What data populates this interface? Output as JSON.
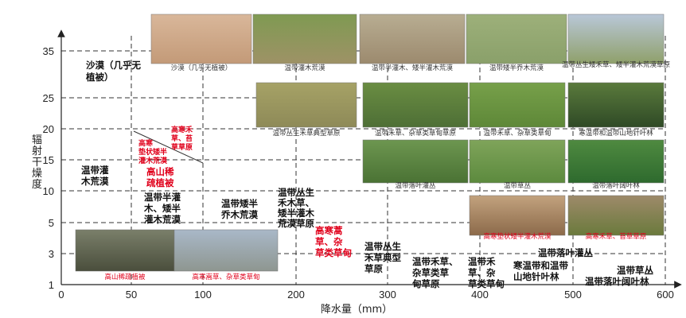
{
  "axes": {
    "x_label": "降水量（mm）",
    "y_label": "辐射干燥度",
    "x_ticks": [
      "0",
      "50",
      "100",
      "200",
      "300",
      "400",
      "500",
      "600"
    ],
    "y_ticks": [
      "1",
      "3",
      "5",
      "10",
      "15",
      "20",
      "25",
      "35"
    ]
  },
  "zones": [
    {
      "lines": [
        "沙漠（几乎无",
        "植被）"
      ],
      "color": "black"
    },
    {
      "lines": [
        "温带灌",
        "木荒漠"
      ],
      "color": "black"
    },
    {
      "lines": [
        "高山稀",
        "疏植被"
      ],
      "color": "red"
    },
    {
      "lines": [
        "高寒",
        "垫状矮半",
        "灌木荒漠"
      ],
      "color": "red"
    },
    {
      "lines": [
        "高寒禾",
        "草、苔",
        "草草原"
      ],
      "color": "red"
    },
    {
      "lines": [
        "温带半灌",
        "木、矮半",
        "灌木荒漠"
      ],
      "color": "black"
    },
    {
      "lines": [
        "温带矮半",
        "乔木荒漠"
      ],
      "color": "black"
    },
    {
      "lines": [
        "温带丛生",
        "禾木草、",
        "矮半灌木",
        "荒漠草原"
      ],
      "color": "black"
    },
    {
      "lines": [
        "高寒蒿",
        "草、杂",
        "草类草甸"
      ],
      "color": "red"
    },
    {
      "lines": [
        "温带丛生",
        "禾草典型",
        "草原"
      ],
      "color": "black"
    },
    {
      "lines": [
        "温带禾草、",
        "杂草类草",
        "甸草原"
      ],
      "color": "black"
    },
    {
      "lines": [
        "温带禾",
        "草、杂",
        "草类草甸"
      ],
      "color": "black"
    },
    {
      "lines": [
        "寒温带和温带",
        "山地针叶林"
      ],
      "color": "black"
    },
    {
      "lines": [
        "温带落叶灌丛"
      ],
      "color": "black"
    },
    {
      "lines": [
        "温带草丛",
        "温带落叶阔叶林"
      ],
      "color": "black"
    }
  ],
  "photos": [
    {
      "caption": "沙漠（几乎无植被）",
      "color": "black",
      "colors": [
        "#d9b79a",
        "#c39a78"
      ]
    },
    {
      "caption": "温带灌木荒漠",
      "color": "black",
      "colors": [
        "#7f9a52",
        "#9e9266"
      ]
    },
    {
      "caption": "温带半灌木、矮半灌木荒漠",
      "color": "black",
      "colors": [
        "#b8ad92",
        "#9c8a6e"
      ]
    },
    {
      "caption": "温带矮半乔木荒漠",
      "color": "black",
      "colors": [
        "#9db07a",
        "#8aa06a"
      ]
    },
    {
      "caption": "温带丛生矮禾草、矮半灌木荒漠草原",
      "color": "black",
      "colors": [
        "#b9c7d8",
        "#8fa06a"
      ]
    },
    {
      "caption": "温带丛生禾草典型草原",
      "color": "black",
      "colors": [
        "#a6a266",
        "#8e8a58"
      ]
    },
    {
      "caption": "温带禾草、杂草类草甸草原",
      "color": "black",
      "colors": [
        "#6a8d42",
        "#4e6f36"
      ]
    },
    {
      "caption": "温带禾草、杂草类草甸",
      "color": "black",
      "colors": [
        "#77a04a",
        "#5e8838"
      ]
    },
    {
      "caption": "寒温带和温带山地针叶林",
      "color": "black",
      "colors": [
        "#5a7a3c",
        "#2f4a26"
      ]
    },
    {
      "caption": "温带落叶灌丛",
      "color": "black",
      "colors": [
        "#6d9650",
        "#4a7234"
      ]
    },
    {
      "caption": "温带草丛",
      "color": "black",
      "colors": [
        "#7fa45a",
        "#5c8a3e"
      ]
    },
    {
      "caption": "温带落叶阔叶林",
      "color": "black",
      "colors": [
        "#4f8a40",
        "#2e6a2e"
      ]
    },
    {
      "caption": "高寒垫状矮半灌木荒漠",
      "color": "red",
      "colors": [
        "#c2a27e",
        "#8c6a4a"
      ]
    },
    {
      "caption": "高寒禾草、苔草草原",
      "color": "red",
      "colors": [
        "#9e8a6a",
        "#6a7a3c"
      ]
    },
    {
      "caption": "高山稀疏植被",
      "color": "red",
      "colors": [
        "#7a7f6a",
        "#4a4e3c"
      ]
    },
    {
      "caption": "高寒嵩草、杂草类草甸",
      "color": "red",
      "colors": [
        "#a9b8c8",
        "#8e9690"
      ]
    }
  ]
}
